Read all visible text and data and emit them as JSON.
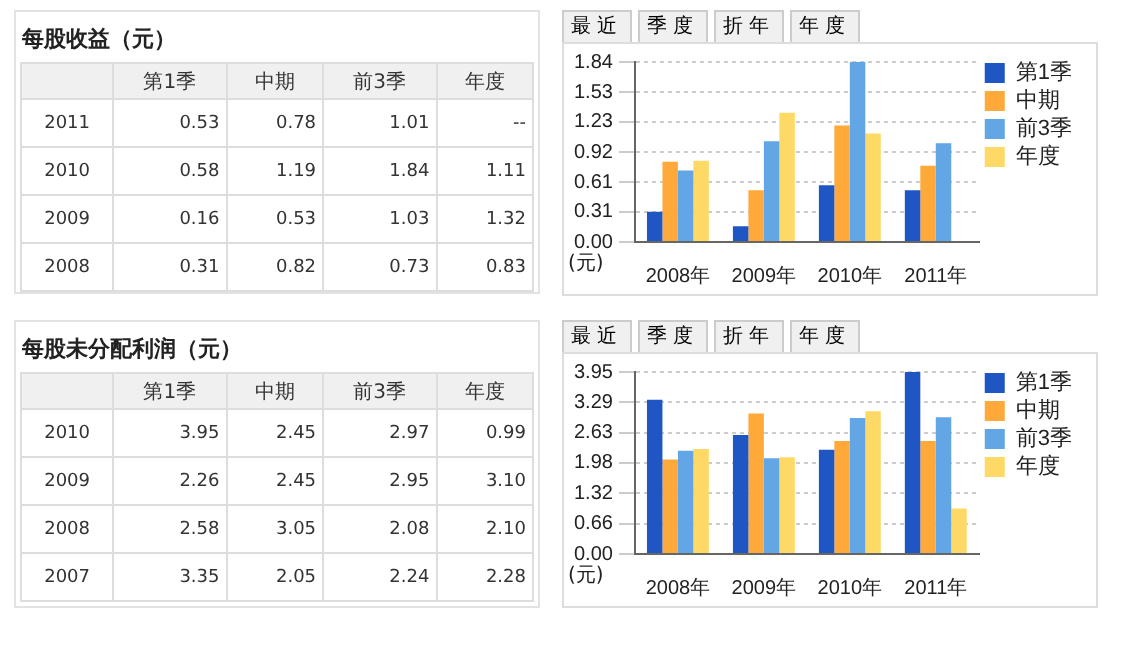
{
  "chart_data": [
    {
      "type": "heatmap",
      "title": "每股收益（元）",
      "categories": [
        "第1季",
        "中期",
        "前3季",
        "年度"
      ],
      "y_categories": [
        "2011",
        "2010",
        "2009",
        "2008"
      ],
      "cells": [
        [
          0.53,
          0.78,
          1.01,
          null
        ],
        [
          0.58,
          1.19,
          1.84,
          1.11
        ],
        [
          0.16,
          0.53,
          1.03,
          1.32
        ],
        [
          0.31,
          0.82,
          0.73,
          0.83
        ]
      ],
      "cell_labels": [
        [
          "0.53",
          "0.78",
          "1.01",
          "--"
        ],
        [
          "0.58",
          "1.19",
          "1.84",
          "1.11"
        ],
        [
          "0.16",
          "0.53",
          "1.03",
          "1.32"
        ],
        [
          "0.31",
          "0.82",
          "0.73",
          "0.83"
        ]
      ]
    },
    {
      "type": "bar",
      "annotations": [
        "最近",
        "季度",
        "折年",
        "年度"
      ],
      "ylabel": "(元)",
      "categories": [
        "2008年",
        "2009年",
        "2010年",
        "2011年"
      ],
      "series": [
        {
          "name": "第1季",
          "color": "#1f56c4",
          "values": [
            0.31,
            0.16,
            0.58,
            0.53
          ]
        },
        {
          "name": "中期",
          "color": "#ffa93a",
          "values": [
            0.82,
            0.53,
            1.19,
            0.78
          ]
        },
        {
          "name": "前3季",
          "color": "#62a6e6",
          "values": [
            0.73,
            1.03,
            1.84,
            1.01
          ]
        },
        {
          "name": "年度",
          "color": "#ffd966",
          "values": [
            0.83,
            1.32,
            1.11,
            null
          ]
        }
      ],
      "ylim": [
        0,
        1.84
      ],
      "yticks": [
        {
          "value": 0,
          "label": "0.00"
        },
        {
          "value": 0.31,
          "label": "0.31"
        },
        {
          "value": 0.61,
          "label": "0.61"
        },
        {
          "value": 0.92,
          "label": "0.92"
        },
        {
          "value": 1.23,
          "label": "1.23"
        },
        {
          "value": 1.53,
          "label": "1.53"
        },
        {
          "value": 1.84,
          "label": "1.84"
        }
      ],
      "grid": "y",
      "legend": "top right"
    },
    {
      "type": "heatmap",
      "title": "每股未分配利润（元）",
      "categories": [
        "第1季",
        "中期",
        "前3季",
        "年度"
      ],
      "y_categories": [
        "2010",
        "2009",
        "2008",
        "2007"
      ],
      "cells": [
        [
          3.95,
          2.45,
          2.97,
          0.99
        ],
        [
          2.26,
          2.45,
          2.95,
          3.1
        ],
        [
          2.58,
          3.05,
          2.08,
          2.1
        ],
        [
          3.35,
          2.05,
          2.24,
          2.28
        ]
      ],
      "cell_labels": [
        [
          "3.95",
          "2.45",
          "2.97",
          "0.99"
        ],
        [
          "2.26",
          "2.45",
          "2.95",
          "3.10"
        ],
        [
          "2.58",
          "3.05",
          "2.08",
          "2.10"
        ],
        [
          "3.35",
          "2.05",
          "2.24",
          "2.28"
        ]
      ]
    },
    {
      "type": "bar",
      "annotations": [
        "最近",
        "季度",
        "折年",
        "年度"
      ],
      "ylabel": "(元)",
      "categories": [
        "2008年",
        "2009年",
        "2010年",
        "2011年"
      ],
      "series": [
        {
          "name": "第1季",
          "color": "#1f56c4",
          "values": [
            3.35,
            2.58,
            2.26,
            3.95
          ]
        },
        {
          "name": "中期",
          "color": "#ffa93a",
          "values": [
            2.05,
            3.05,
            2.45,
            2.45
          ]
        },
        {
          "name": "前3季",
          "color": "#62a6e6",
          "values": [
            2.24,
            2.08,
            2.95,
            2.97
          ]
        },
        {
          "name": "年度",
          "color": "#ffd966",
          "values": [
            2.28,
            2.1,
            3.1,
            0.99
          ]
        }
      ],
      "ylim": [
        0,
        3.95
      ],
      "yticks": [
        {
          "value": 0,
          "label": "0.00"
        },
        {
          "value": 0.66,
          "label": "0.66"
        },
        {
          "value": 1.32,
          "label": "1.32"
        },
        {
          "value": 1.98,
          "label": "1.98"
        },
        {
          "value": 2.63,
          "label": "2.63"
        },
        {
          "value": 3.29,
          "label": "3.29"
        },
        {
          "value": 3.95,
          "label": "3.95"
        }
      ],
      "grid": "y",
      "legend": "top right"
    }
  ]
}
